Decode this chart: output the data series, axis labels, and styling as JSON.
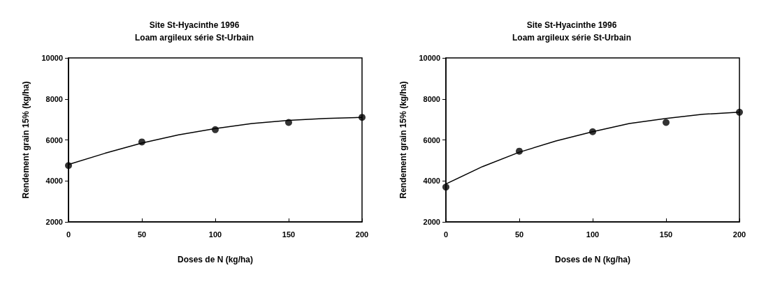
{
  "chart_data": [
    {
      "type": "scatter",
      "title": "Site St-Hyacinthe 1996\nLoam argileux série St-Urbain",
      "xlabel": "Doses de N (kg/ha)",
      "ylabel": "Rendement grain 15% (kg/ha)",
      "x": [
        0,
        50,
        100,
        150,
        200
      ],
      "series": [
        {
          "color": "#000000",
          "values": [
            4750,
            5900,
            6500,
            6850,
            7100
          ],
          "marker": "circle"
        },
        {
          "type": "line",
          "color": "#000000",
          "x": [
            0,
            25,
            50,
            75,
            100,
            125,
            150,
            175,
            200
          ],
          "values": [
            4800,
            5350,
            5850,
            6250,
            6550,
            6800,
            6950,
            7050,
            7100
          ],
          "marker": "none",
          "line_style": "solid"
        }
      ],
      "xlim": [
        0,
        200
      ],
      "xticks": [
        0,
        50,
        100,
        150,
        200
      ],
      "ylim": [
        2000,
        10000
      ],
      "yticks": [
        2000,
        4000,
        6000,
        8000,
        10000
      ]
    },
    {
      "type": "scatter",
      "title": "Site St-Hyacinthe 1996\nLoam argileux série St-Urbain",
      "xlabel": "Doses de N (kg/ha)",
      "ylabel": "Rendement grain 15% (kg/ha)",
      "x": [
        0,
        50,
        100,
        150,
        200
      ],
      "series": [
        {
          "color": "#000000",
          "values": [
            3700,
            5450,
            6400,
            6850,
            7350
          ],
          "marker": "circle"
        },
        {
          "type": "line",
          "color": "#000000",
          "x": [
            0,
            25,
            50,
            75,
            100,
            125,
            150,
            175,
            200
          ],
          "values": [
            3850,
            4700,
            5400,
            5950,
            6400,
            6800,
            7050,
            7250,
            7350
          ],
          "marker": "none",
          "line_style": "solid"
        }
      ],
      "xlim": [
        0,
        200
      ],
      "xticks": [
        0,
        50,
        100,
        150,
        200
      ],
      "ylim": [
        2000,
        10000
      ],
      "yticks": [
        2000,
        4000,
        6000,
        8000,
        10000
      ]
    }
  ]
}
